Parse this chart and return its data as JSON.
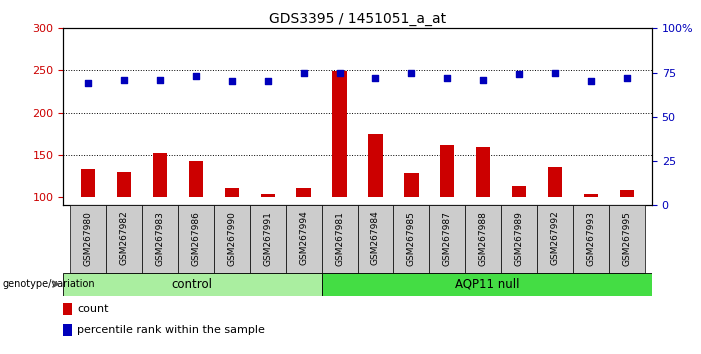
{
  "title": "GDS3395 / 1451051_a_at",
  "samples": [
    "GSM267980",
    "GSM267982",
    "GSM267983",
    "GSM267986",
    "GSM267990",
    "GSM267991",
    "GSM267994",
    "GSM267981",
    "GSM267984",
    "GSM267985",
    "GSM267987",
    "GSM267988",
    "GSM267989",
    "GSM267992",
    "GSM267993",
    "GSM267995"
  ],
  "counts": [
    133,
    130,
    152,
    143,
    110,
    104,
    110,
    249,
    175,
    128,
    162,
    159,
    113,
    135,
    104,
    108
  ],
  "percentile_ranks": [
    69,
    71,
    71,
    73,
    70,
    70,
    75,
    75,
    72,
    75,
    72,
    71,
    74,
    75,
    70,
    72
  ],
  "n_control": 7,
  "control_label": "control",
  "aqp11_label": "AQP11 null",
  "control_color": "#AAEEA0",
  "aqp11_color": "#44DD44",
  "bar_color": "#CC0000",
  "dot_color": "#0000BB",
  "ylim_left": [
    90,
    300
  ],
  "ylim_right": [
    0,
    100
  ],
  "yticks_left": [
    100,
    150,
    200,
    250,
    300
  ],
  "yticks_right": [
    0,
    25,
    50,
    75,
    100
  ],
  "ytick_labels_right": [
    "0",
    "25",
    "50",
    "75",
    "100%"
  ],
  "bg_color": "#FFFFFF",
  "tick_bg_color": "#CCCCCC",
  "grid_color": "#000000",
  "legend_count": "count",
  "legend_pct": "percentile rank within the sample",
  "genotype_label": "genotype/variation"
}
